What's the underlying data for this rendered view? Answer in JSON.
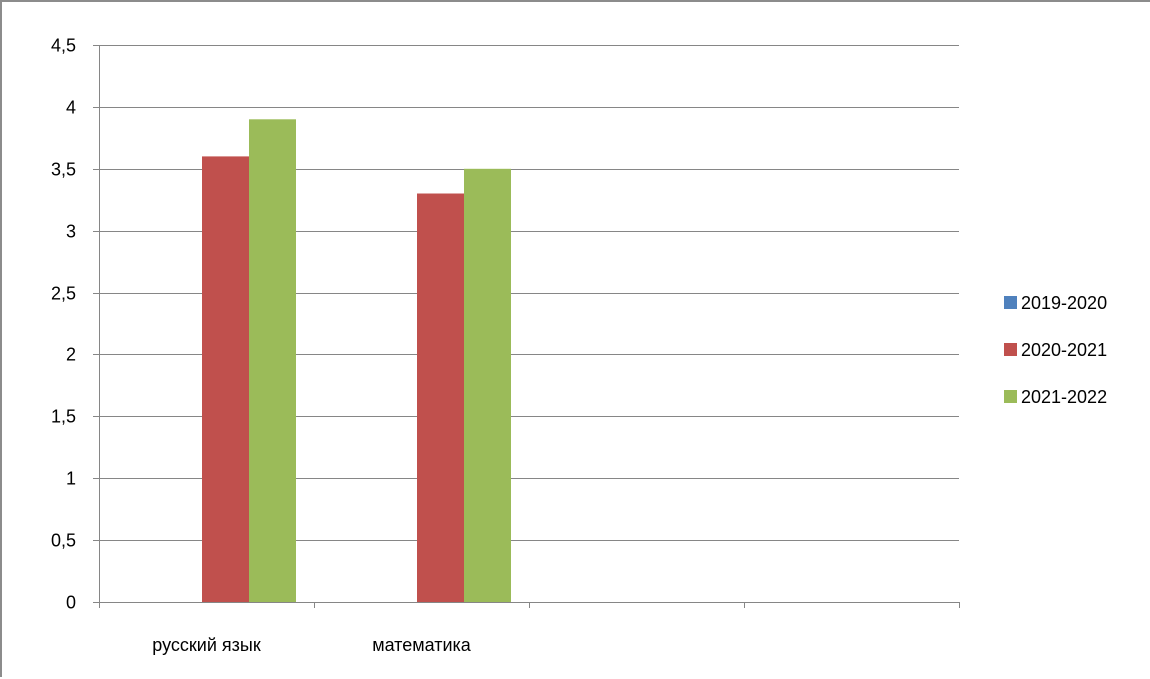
{
  "chart_data": {
    "type": "bar",
    "categories": [
      "русский язык",
      "математика",
      "",
      ""
    ],
    "series": [
      {
        "name": "2019-2020",
        "color": "#4f81bd",
        "values": [
          null,
          null,
          null,
          null
        ]
      },
      {
        "name": "2020-2021",
        "color": "#c0504d",
        "values": [
          3.6,
          3.3,
          null,
          null
        ]
      },
      {
        "name": "2021-2022",
        "color": "#9bbb59",
        "values": [
          3.9,
          3.5,
          null,
          null
        ]
      }
    ],
    "yticks": [
      "0",
      "0,5",
      "1",
      "1,5",
      "2",
      "2,5",
      "3",
      "3,5",
      "4",
      "4,5"
    ],
    "ylim": [
      0,
      4.5
    ],
    "ystep": 0.5,
    "title": "",
    "xlabel": "",
    "ylabel": "",
    "grid": true,
    "legend": "right",
    "colors": {
      "gridline": "#868686",
      "axis": "#868686",
      "frame": "#8c8c8c"
    }
  }
}
